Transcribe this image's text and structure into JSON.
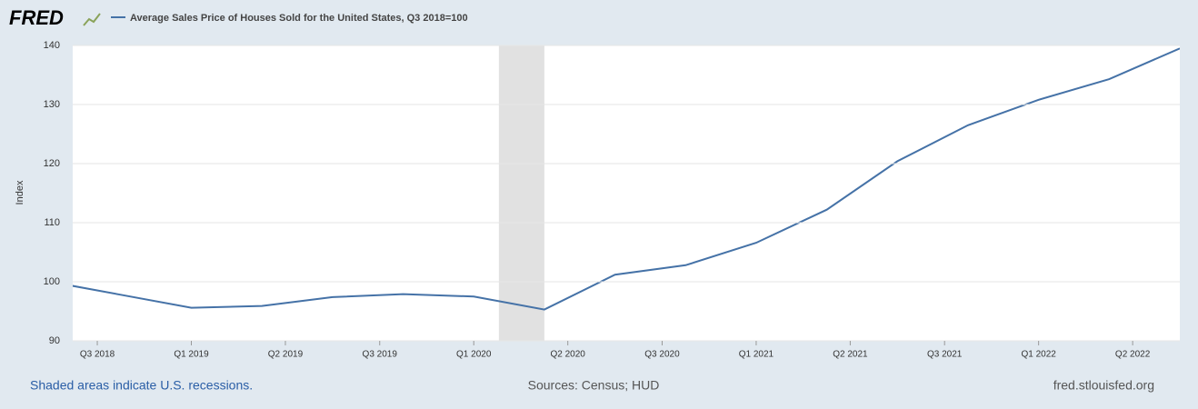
{
  "chart_data": {
    "type": "line",
    "brand": "FRED",
    "y_label": "Index",
    "x": [
      2018.5,
      2018.75,
      2019,
      2019.25,
      2019.5,
      2019.75,
      2020,
      2020.25,
      2020.5,
      2020.75,
      2021,
      2021.25,
      2021.5,
      2021.75,
      2022,
      2022.25,
      2022.5
    ],
    "series": [
      {
        "name": "Average Sales Price of Houses Sold for the United States, Q3 2018=100",
        "color": "#4572a7",
        "values": [
          100,
          97.8,
          95.6,
          95.9,
          97.4,
          97.9,
          97.5,
          95.3,
          101.2,
          102.8,
          106.6,
          112.2,
          120.4,
          126.5,
          130.8,
          134.3,
          139.5
        ]
      }
    ],
    "recessions": [
      [
        2020.089,
        2020.25
      ]
    ],
    "recession_color": "#e1e1e1",
    "xlim": [
      2018.58,
      2022.5
    ],
    "xticks": [
      {
        "value": 2018.667,
        "label": "Q3 2018"
      },
      {
        "value": 2019,
        "label": "Q1 2019"
      },
      {
        "value": 2019.333,
        "label": "Q2 2019"
      },
      {
        "value": 2019.667,
        "label": "Q3 2019"
      },
      {
        "value": 2020,
        "label": "Q1 2020"
      },
      {
        "value": 2020.333,
        "label": "Q2 2020"
      },
      {
        "value": 2020.667,
        "label": "Q3 2020"
      },
      {
        "value": 2021,
        "label": "Q1 2021"
      },
      {
        "value": 2021.333,
        "label": "Q2 2021"
      },
      {
        "value": 2021.667,
        "label": "Q3 2021"
      },
      {
        "value": 2022,
        "label": "Q1 2022"
      },
      {
        "value": 2022.333,
        "label": "Q2 2022"
      }
    ],
    "ylim": [
      90,
      140
    ],
    "yticks": [
      90,
      100,
      110,
      120,
      130,
      140
    ],
    "grid": true,
    "annotations": [
      "Shaded areas indicate U.S. recessions.",
      "Sources: Census; HUD",
      "fred.stlouisfed.org"
    ]
  }
}
